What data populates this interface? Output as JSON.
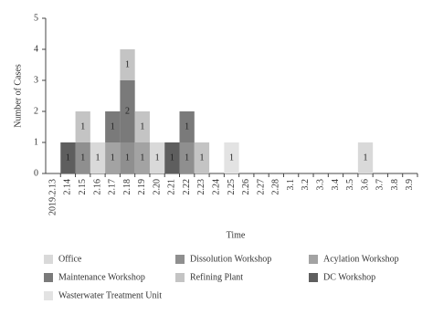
{
  "chart_data": {
    "type": "stacked_bar",
    "xlabel": "Time",
    "ylabel": "Number of Cases",
    "categories": [
      "2019.2.13",
      "2.14",
      "2.15",
      "2.16",
      "2.17",
      "2.18",
      "2.19",
      "2.20",
      "2.21",
      "2.22",
      "2.23",
      "2.24",
      "2.25",
      "2.26",
      "2.27",
      "2.28",
      "3.1",
      "3.2",
      "3.3",
      "3.4",
      "3.5",
      "3.6",
      "3.7",
      "3.8",
      "3.9"
    ],
    "series": [
      {
        "name": "Office",
        "color": "#d9d9d9",
        "values": [
          0,
          0,
          0,
          1,
          0,
          0,
          0,
          1,
          0,
          0,
          0,
          0,
          0,
          0,
          0,
          0,
          0,
          0,
          0,
          0,
          0,
          1,
          0,
          0,
          0
        ]
      },
      {
        "name": "Dissolution Workshop",
        "color": "#8f8f8f",
        "values": [
          0,
          0,
          1,
          0,
          0,
          1,
          0,
          0,
          0,
          1,
          0,
          0,
          0,
          0,
          0,
          0,
          0,
          0,
          0,
          0,
          0,
          0,
          0,
          0,
          0
        ]
      },
      {
        "name": "Acylation Workshop",
        "color": "#a3a3a3",
        "values": [
          0,
          0,
          0,
          0,
          1,
          0,
          1,
          0,
          0,
          0,
          0,
          0,
          0,
          0,
          0,
          0,
          0,
          0,
          0,
          0,
          0,
          0,
          0,
          0,
          0
        ]
      },
      {
        "name": "Maintenance Workshop",
        "color": "#7a7a7a",
        "values": [
          0,
          0,
          0,
          0,
          1,
          2,
          0,
          0,
          0,
          1,
          0,
          0,
          0,
          0,
          0,
          0,
          0,
          0,
          0,
          0,
          0,
          0,
          0,
          0,
          0
        ]
      },
      {
        "name": "Refining Plant",
        "color": "#c4c4c4",
        "values": [
          0,
          0,
          1,
          0,
          0,
          1,
          1,
          0,
          0,
          0,
          1,
          0,
          0,
          0,
          0,
          0,
          0,
          0,
          0,
          0,
          0,
          0,
          0,
          0,
          0
        ]
      },
      {
        "name": "DC Workshop",
        "color": "#5e5e5e",
        "values": [
          0,
          1,
          0,
          0,
          0,
          0,
          0,
          0,
          1,
          0,
          0,
          0,
          0,
          0,
          0,
          0,
          0,
          0,
          0,
          0,
          0,
          0,
          0,
          0,
          0
        ]
      },
      {
        "name": "Wasterwater Treatment Unit",
        "color": "#e3e3e3",
        "values": [
          0,
          0,
          0,
          0,
          0,
          0,
          0,
          0,
          0,
          0,
          0,
          0,
          1,
          0,
          0,
          0,
          0,
          0,
          0,
          0,
          0,
          0,
          0,
          0,
          0
        ]
      }
    ],
    "ylim": [
      0,
      5
    ],
    "yticks": [
      0,
      1,
      2,
      3,
      4,
      5
    ],
    "grid": false
  }
}
